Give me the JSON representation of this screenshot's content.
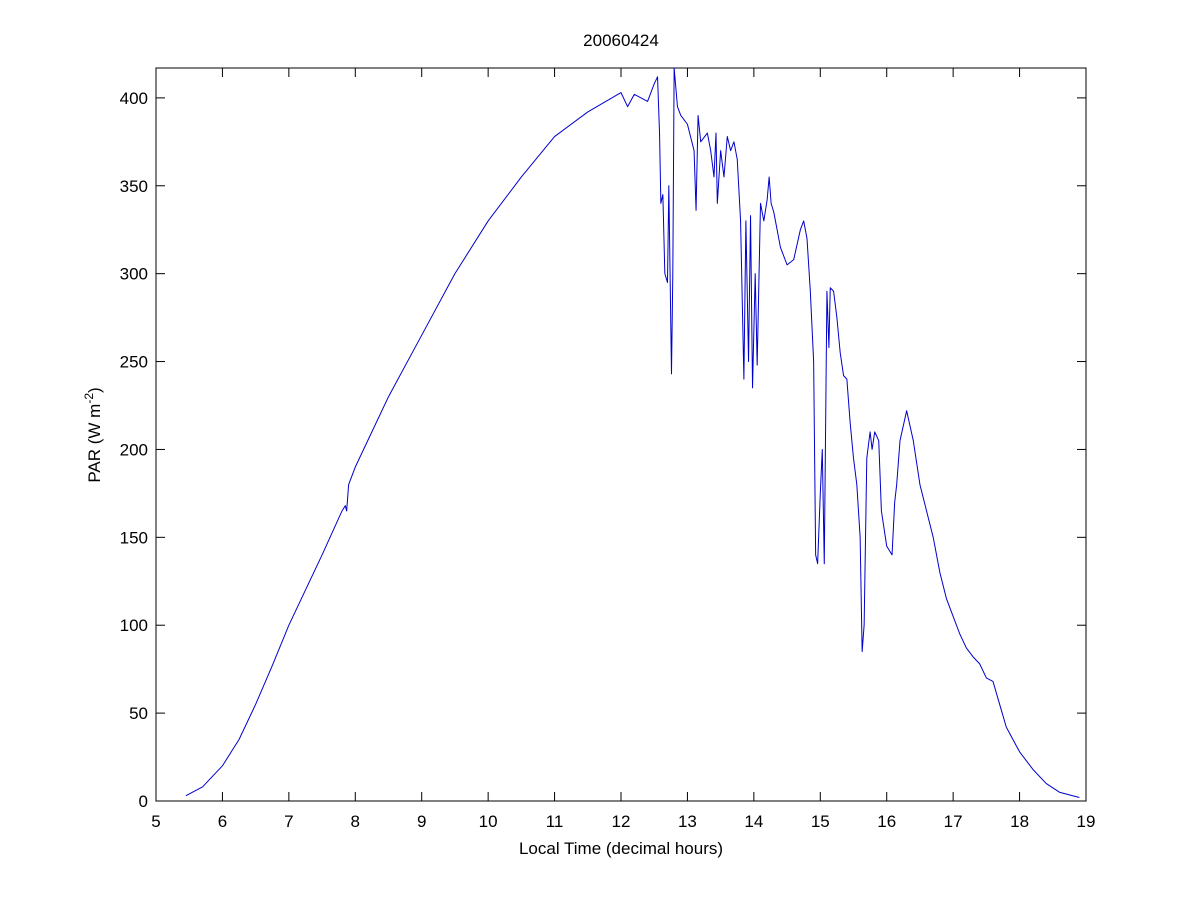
{
  "chart_data": {
    "type": "line",
    "title": "20060424",
    "xlabel": "Local Time (decimal hours)",
    "ylabel": [
      "PAR (W m",
      "-2",
      ")"
    ],
    "color": "#0000cc",
    "x": [
      5.45,
      5.7,
      6.0,
      6.25,
      6.5,
      6.75,
      7.0,
      7.25,
      7.5,
      7.8,
      7.85,
      7.87,
      7.9,
      8.0,
      8.5,
      9.0,
      9.5,
      10.0,
      10.5,
      11.0,
      11.5,
      12.0,
      12.1,
      12.2,
      12.4,
      12.5,
      12.55,
      12.58,
      12.6,
      12.63,
      12.66,
      12.7,
      12.72,
      12.76,
      12.78,
      12.8,
      12.85,
      12.9,
      13.0,
      13.1,
      13.13,
      13.16,
      13.2,
      13.3,
      13.35,
      13.4,
      13.43,
      13.45,
      13.5,
      13.55,
      13.6,
      13.65,
      13.7,
      13.75,
      13.8,
      13.85,
      13.88,
      13.92,
      13.95,
      13.98,
      14.02,
      14.05,
      14.1,
      14.15,
      14.2,
      14.23,
      14.26,
      14.3,
      14.4,
      14.5,
      14.6,
      14.7,
      14.75,
      14.8,
      14.85,
      14.9,
      14.93,
      14.96,
      15.0,
      15.03,
      15.06,
      15.1,
      15.13,
      15.15,
      15.2,
      15.25,
      15.3,
      15.35,
      15.4,
      15.45,
      15.5,
      15.55,
      15.6,
      15.63,
      15.66,
      15.7,
      15.75,
      15.78,
      15.82,
      15.88,
      15.92,
      16.0,
      16.08,
      16.12,
      16.15,
      16.2,
      16.3,
      16.4,
      16.5,
      16.6,
      16.7,
      16.8,
      16.9,
      17.0,
      17.1,
      17.2,
      17.3,
      17.4,
      17.5,
      17.6,
      17.7,
      17.8,
      18.0,
      18.2,
      18.4,
      18.6,
      18.9
    ],
    "values": [
      3,
      8,
      20,
      35,
      55,
      77,
      100,
      120,
      140,
      165,
      168,
      165,
      180,
      190,
      230,
      265,
      300,
      330,
      355,
      378,
      392,
      403,
      395,
      402,
      398,
      408,
      412,
      380,
      340,
      345,
      300,
      295,
      350,
      243,
      300,
      417,
      395,
      390,
      385,
      370,
      336,
      390,
      375,
      380,
      370,
      355,
      380,
      340,
      370,
      355,
      378,
      370,
      375,
      365,
      330,
      240,
      330,
      250,
      333,
      235,
      300,
      248,
      340,
      330,
      342,
      355,
      340,
      335,
      315,
      305,
      308,
      325,
      330,
      320,
      290,
      250,
      140,
      135,
      175,
      200,
      135,
      290,
      258,
      292,
      290,
      275,
      255,
      242,
      240,
      215,
      195,
      180,
      150,
      85,
      100,
      195,
      210,
      200,
      210,
      205,
      165,
      145,
      140,
      170,
      180,
      205,
      222,
      205,
      180,
      165,
      150,
      130,
      115,
      105,
      95,
      87,
      82,
      78,
      70,
      68,
      55,
      42,
      28,
      18,
      10,
      5,
      2
    ],
    "xlim": [
      5,
      19
    ],
    "xticks": [
      5,
      6,
      7,
      8,
      9,
      10,
      11,
      12,
      13,
      14,
      15,
      16,
      17,
      18,
      19
    ],
    "ylim": [
      0,
      417
    ],
    "yticks": [
      0,
      50,
      100,
      150,
      200,
      250,
      300,
      350,
      400
    ]
  }
}
